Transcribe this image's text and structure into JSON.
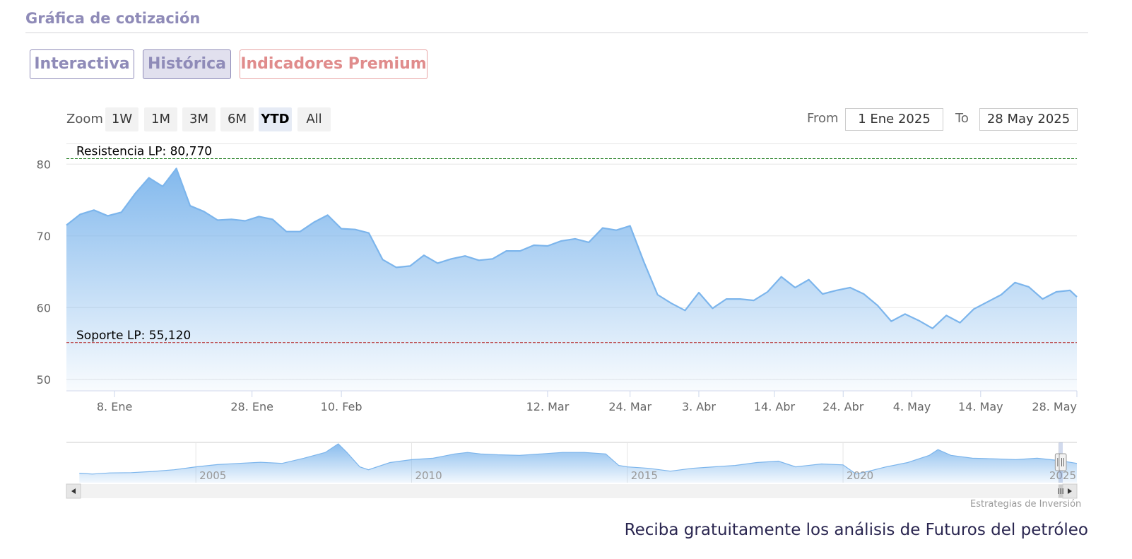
{
  "section_title": "Gráfica de cotización",
  "tabs": [
    {
      "label": "Interactiva",
      "active": false
    },
    {
      "label": "Histórica",
      "active": true
    },
    {
      "label": "Indicadores Premium",
      "active": false
    }
  ],
  "zoom": {
    "label": "Zoom",
    "buttons": [
      "1W",
      "1M",
      "3M",
      "6M",
      "YTD",
      "All"
    ],
    "selected": "YTD"
  },
  "range": {
    "from_label": "From",
    "from_value": "1 Ene 2025",
    "to_label": "To",
    "to_value": "28 May 2025"
  },
  "chart_data": {
    "type": "area",
    "title": "",
    "ylim": [
      48.5,
      82
    ],
    "y_ticks": [
      50,
      60,
      70,
      80
    ],
    "x_tick_labels": [
      "8. Ene",
      "28. Ene",
      "10. Feb",
      "12. Mar",
      "24. Mar",
      "3. Abr",
      "14. Abr",
      "24. Abr",
      "4. May",
      "14. May",
      "28. May"
    ],
    "x_tick_days": [
      8,
      28,
      41,
      71,
      83,
      93,
      104,
      114,
      124,
      134,
      148
    ],
    "x_start_day": 1,
    "x_end_day": 148,
    "series": [
      {
        "color": "#7cb5ec",
        "x_days": [
          1,
          3,
          5,
          7,
          9,
          11,
          13,
          15,
          17,
          19,
          21,
          23,
          25,
          27,
          29,
          31,
          33,
          35,
          37,
          39,
          41,
          43,
          45,
          47,
          49,
          51,
          53,
          55,
          57,
          59,
          61,
          63,
          65,
          67,
          69,
          71,
          73,
          75,
          77,
          79,
          81,
          83,
          85,
          87,
          89,
          91,
          93,
          95,
          97,
          99,
          101,
          103,
          105,
          107,
          109,
          111,
          113,
          115,
          117,
          119,
          121,
          123,
          125,
          127,
          129,
          131,
          133,
          135,
          137,
          139,
          141,
          143,
          145,
          147,
          148
        ],
        "values": [
          71.5,
          73.0,
          73.6,
          72.8,
          73.3,
          75.9,
          78.1,
          76.9,
          79.4,
          74.2,
          73.4,
          72.2,
          72.3,
          72.1,
          72.7,
          72.3,
          70.6,
          70.6,
          71.9,
          72.9,
          71.0,
          70.9,
          70.4,
          66.7,
          65.6,
          65.8,
          67.3,
          66.2,
          66.8,
          67.2,
          66.6,
          66.8,
          67.9,
          67.9,
          68.7,
          68.6,
          69.3,
          69.6,
          69.1,
          71.1,
          70.8,
          71.4,
          66.4,
          61.8,
          60.6,
          59.6,
          62.1,
          59.9,
          61.2,
          61.2,
          61.0,
          62.2,
          64.3,
          62.8,
          63.9,
          61.9,
          62.4,
          62.8,
          61.9,
          60.3,
          58.1,
          59.1,
          58.2,
          57.1,
          58.9,
          57.9,
          59.8,
          60.8,
          61.8,
          63.5,
          62.9,
          61.2,
          62.2,
          62.4,
          61.5
        ]
      }
    ],
    "annotations": [
      {
        "label": "Resistencia LP: 80,770",
        "value": 80.77,
        "color": "#1a7a1a"
      },
      {
        "label": "Soporte LP: 55,120",
        "value": 55.12,
        "color": "#b01818"
      }
    ],
    "navigator": {
      "x_range": [
        2002.0,
        2025.42
      ],
      "tick_labels": [
        "2005",
        "2010",
        "2015",
        "2020",
        "2025"
      ],
      "tick_years": [
        2005,
        2010,
        2015,
        2020,
        2025
      ],
      "years": [
        2002.3,
        2002.6,
        2003.0,
        2003.5,
        2004.0,
        2004.5,
        2005.0,
        2005.5,
        2006.0,
        2006.5,
        2007.0,
        2007.5,
        2008.0,
        2008.3,
        2008.5,
        2008.8,
        2009.0,
        2009.5,
        2010.0,
        2010.5,
        2011.0,
        2011.3,
        2011.6,
        2012.0,
        2012.5,
        2013.0,
        2013.5,
        2014.0,
        2014.5,
        2014.8,
        2015.0,
        2015.5,
        2016.0,
        2016.5,
        2017.0,
        2017.5,
        2018.0,
        2018.5,
        2018.9,
        2019.5,
        2020.0,
        2020.3,
        2020.6,
        2021.0,
        2021.5,
        2022.0,
        2022.2,
        2022.5,
        2023.0,
        2023.5,
        2024.0,
        2024.5,
        2025.0,
        2025.42
      ],
      "values": [
        28,
        25,
        29,
        30,
        34,
        40,
        50,
        58,
        62,
        66,
        62,
        80,
        100,
        130,
        100,
        50,
        40,
        65,
        75,
        80,
        95,
        100,
        95,
        92,
        90,
        95,
        100,
        100,
        95,
        55,
        50,
        45,
        35,
        45,
        50,
        55,
        65,
        70,
        50,
        60,
        57,
        25,
        35,
        50,
        65,
        90,
        110,
        90,
        80,
        78,
        75,
        80,
        72,
        62
      ]
    }
  },
  "credit": "Estrategias de Inversión",
  "cta": "Reciba gratuitamente los análisis de Futuros del petróleo"
}
